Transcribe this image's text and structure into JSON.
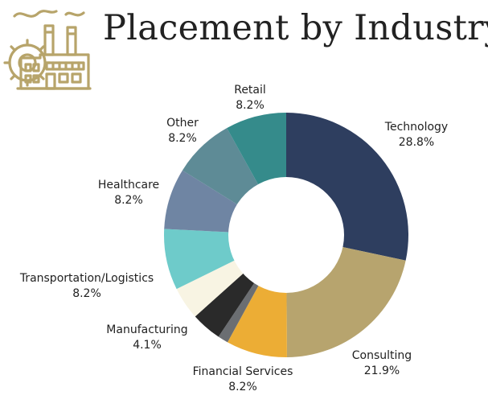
{
  "title": "Placement by Industry",
  "icon": "factory-icon",
  "colors": {
    "icon": "#b7a46a",
    "hole": "#ffffff"
  },
  "chart_data": {
    "type": "pie",
    "donut": true,
    "title": "Placement by Industry",
    "start_angle_deg": 0,
    "direction": "clockwise",
    "slices": [
      {
        "label": "Technology",
        "value_label": "28.8%",
        "value": 28.8,
        "color": "#2e3e5f"
      },
      {
        "label": "Consulting",
        "value_label": "21.9%",
        "value": 21.9,
        "color": "#b7a46e"
      },
      {
        "label": "Financial Services",
        "value_label": "8.2%",
        "value": 8.2,
        "color": "#ecad35"
      },
      {
        "label": "",
        "value_label": "",
        "value": 1.4,
        "color": "#6b6e72"
      },
      {
        "label": "Manufacturing",
        "value_label": "4.1%",
        "value": 4.1,
        "color": "#2a2a2a"
      },
      {
        "label": "",
        "value_label": "",
        "value": 4.4,
        "color": "#f8f4e3"
      },
      {
        "label": "Transportation/Logistics",
        "value_label": "8.2%",
        "value": 8.2,
        "color": "#6ecbca"
      },
      {
        "label": "Healthcare",
        "value_label": "8.2%",
        "value": 8.2,
        "color": "#6f85a3"
      },
      {
        "label": "Other",
        "value_label": "8.2%",
        "value": 8.2,
        "color": "#5e8b96"
      },
      {
        "label": "Retail",
        "value_label": "8.2%",
        "value": 8.2,
        "color": "#358b8b"
      }
    ]
  }
}
